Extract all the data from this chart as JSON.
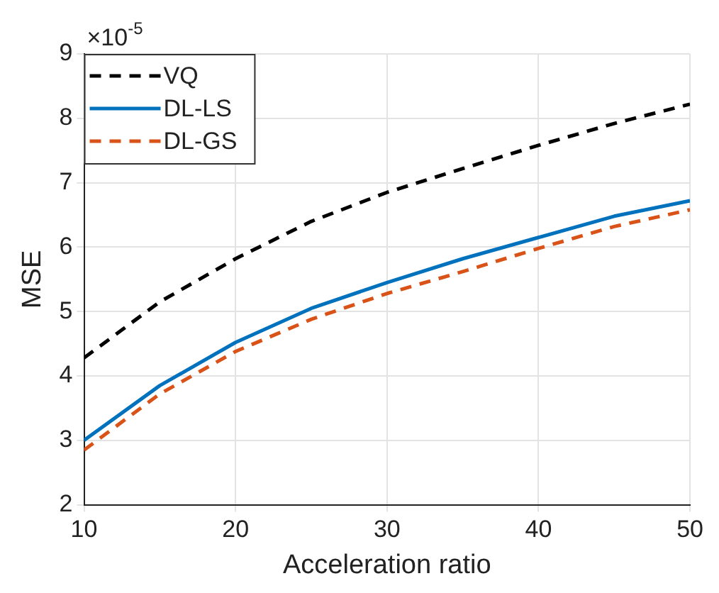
{
  "chart_data": {
    "type": "line",
    "xlabel": "Acceleration ratio",
    "ylabel": "MSE",
    "annotations": [
      "×10$^{-5}$"
    ],
    "x": [
      10,
      15,
      20,
      25,
      30,
      35,
      40,
      45,
      50
    ],
    "series": [
      {
        "name": "VQ",
        "color": "#000000",
        "line_style": "dashed",
        "values": [
          4.28,
          5.15,
          5.82,
          6.4,
          6.85,
          7.22,
          7.58,
          7.92,
          8.22
        ]
      },
      {
        "name": "DL-LS",
        "color": "#0072bd",
        "line_style": "solid",
        "values": [
          3.0,
          3.85,
          4.52,
          5.05,
          5.45,
          5.82,
          6.15,
          6.48,
          6.72
        ]
      },
      {
        "name": "DL-GS",
        "color": "#d95319",
        "line_style": "dashed",
        "values": [
          2.85,
          3.72,
          4.38,
          4.88,
          5.28,
          5.62,
          5.98,
          6.32,
          6.58
        ]
      }
    ],
    "xlim": [
      10,
      50
    ],
    "xticks": [
      10,
      20,
      30,
      40,
      50
    ],
    "ylim": [
      2,
      9
    ],
    "yticks": [
      2,
      3,
      4,
      5,
      6,
      7,
      8,
      9
    ],
    "grid": true,
    "legend": "top left",
    "marker": "none"
  }
}
